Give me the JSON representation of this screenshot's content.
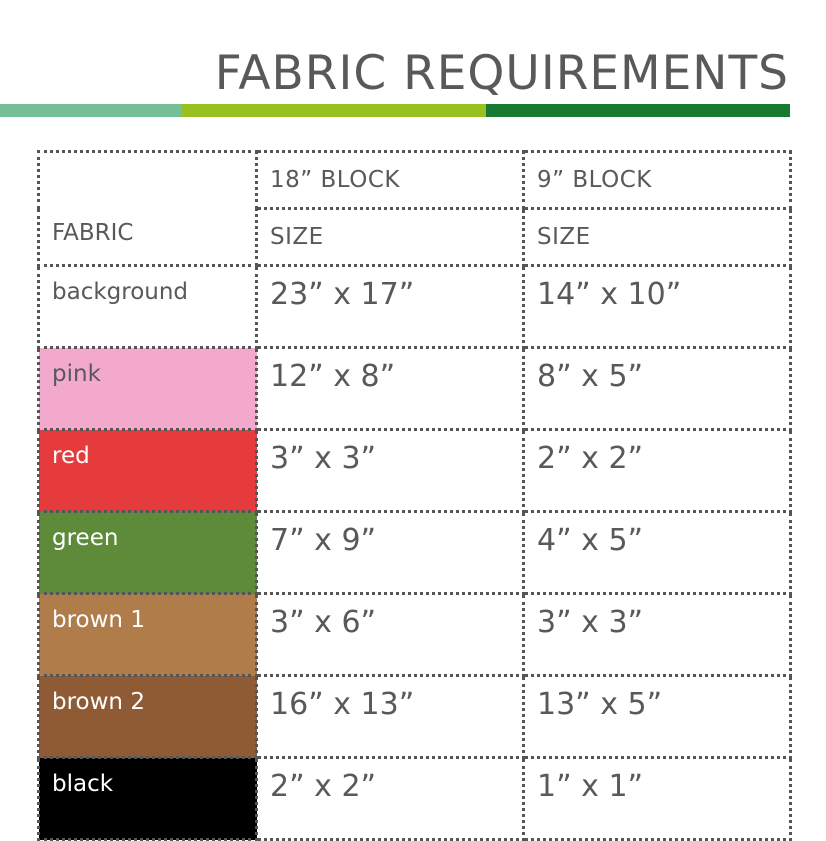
{
  "title": "FABRIC REQUIREMENTS",
  "accent_colors": [
    "#74bf96",
    "#97c11f",
    "#177a30"
  ],
  "table": {
    "fabric_header": "FABRIC",
    "columns": [
      {
        "block": "18” BLOCK",
        "sub": "SIZE"
      },
      {
        "block": "9” BLOCK",
        "sub": "SIZE"
      }
    ],
    "rows": [
      {
        "fabric": "background",
        "color": "#ffffff",
        "text_color": "#58595b",
        "large": "23” x 17”",
        "small": "14” x 10”"
      },
      {
        "fabric": "pink",
        "color": "#f2a9cc",
        "text_color": "#58595b",
        "large": "12” x 8”",
        "small": "8” x 5”"
      },
      {
        "fabric": "red",
        "color": "#e63b3c",
        "text_color": "#ffffff",
        "large": "3” x 3”",
        "small": "2” x 2”"
      },
      {
        "fabric": "green",
        "color": "#5d8b39",
        "text_color": "#ffffff",
        "large": "7” x 9”",
        "small": "4” x 5”"
      },
      {
        "fabric": "brown 1",
        "color": "#b07d4a",
        "text_color": "#ffffff",
        "large": "3” x 6”",
        "small": "3” x 3”"
      },
      {
        "fabric": "brown 2",
        "color": "#8e5b35",
        "text_color": "#ffffff",
        "large": "16” x 13”",
        "small": "13” x 5”"
      },
      {
        "fabric": "black",
        "color": "#000000",
        "text_color": "#ffffff",
        "large": "2” x 2”",
        "small": "1” x 1”"
      }
    ]
  }
}
